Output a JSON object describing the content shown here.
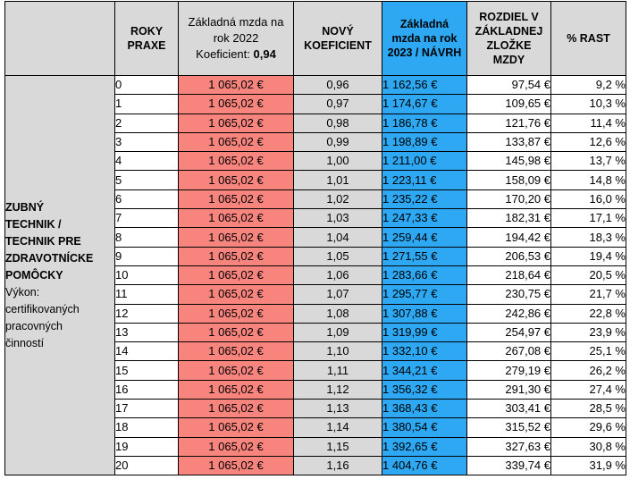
{
  "headers": {
    "category": "",
    "years": "ROKY\nPRAXE",
    "base_salary_line1": "Základná mzda na rok 2022",
    "base_salary_coef_label": "Koeficient:",
    "base_salary_coef_value": "0,94",
    "new_coef": "NOVÝ\nKOEFICIENT",
    "new_salary": "Základná mzda na rok 2023  /  NÁVRH",
    "difference": "ROZDIEL V ZÁKLADNEJ ZLOŽKE MZDY",
    "growth": "% RAST"
  },
  "category": {
    "title": "ZUBNÝ\nTECHNIK /\nTECHNIK PRE\nZDRAVOTNÍCKE\nPOMÔCKY",
    "description": "Výkon:\ncertifikovaných\npracovných\nčinností"
  },
  "rows": [
    {
      "years": "0",
      "base_salary": "1 065,02 €",
      "coef": "0,96",
      "new_salary": "1 162,56 €",
      "difference": "97,54 €",
      "growth": "9,2 %"
    },
    {
      "years": "1",
      "base_salary": "1 065,02 €",
      "coef": "0,97",
      "new_salary": "1 174,67 €",
      "difference": "109,65 €",
      "growth": "10,3 %"
    },
    {
      "years": "2",
      "base_salary": "1 065,02 €",
      "coef": "0,98",
      "new_salary": "1 186,78 €",
      "difference": "121,76 €",
      "growth": "11,4 %"
    },
    {
      "years": "3",
      "base_salary": "1 065,02 €",
      "coef": "0,99",
      "new_salary": "1 198,89 €",
      "difference": "133,87 €",
      "growth": "12,6 %"
    },
    {
      "years": "4",
      "base_salary": "1 065,02 €",
      "coef": "1,00",
      "new_salary": "1 211,00 €",
      "difference": "145,98 €",
      "growth": "13,7 %"
    },
    {
      "years": "5",
      "base_salary": "1 065,02 €",
      "coef": "1,01",
      "new_salary": "1 223,11 €",
      "difference": "158,09 €",
      "growth": "14,8 %"
    },
    {
      "years": "6",
      "base_salary": "1 065,02 €",
      "coef": "1,02",
      "new_salary": "1 235,22 €",
      "difference": "170,20 €",
      "growth": "16,0 %"
    },
    {
      "years": "7",
      "base_salary": "1 065,02 €",
      "coef": "1,03",
      "new_salary": "1 247,33 €",
      "difference": "182,31 €",
      "growth": "17,1 %"
    },
    {
      "years": "8",
      "base_salary": "1 065,02 €",
      "coef": "1,04",
      "new_salary": "1 259,44 €",
      "difference": "194,42 €",
      "growth": "18,3 %"
    },
    {
      "years": "9",
      "base_salary": "1 065,02 €",
      "coef": "1,05",
      "new_salary": "1 271,55 €",
      "difference": "206,53 €",
      "growth": "19,4 %"
    },
    {
      "years": "10",
      "base_salary": "1 065,02 €",
      "coef": "1,06",
      "new_salary": "1 283,66 €",
      "difference": "218,64 €",
      "growth": "20,5 %"
    },
    {
      "years": "11",
      "base_salary": "1 065,02 €",
      "coef": "1,07",
      "new_salary": "1 295,77 €",
      "difference": "230,75 €",
      "growth": "21,7 %"
    },
    {
      "years": "12",
      "base_salary": "1 065,02 €",
      "coef": "1,08",
      "new_salary": "1 307,88 €",
      "difference": "242,86 €",
      "growth": "22,8 %"
    },
    {
      "years": "13",
      "base_salary": "1 065,02 €",
      "coef": "1,09",
      "new_salary": "1 319,99 €",
      "difference": "254,97 €",
      "growth": "23,9 %"
    },
    {
      "years": "14",
      "base_salary": "1 065,02 €",
      "coef": "1,10",
      "new_salary": "1 332,10 €",
      "difference": "267,08 €",
      "growth": "25,1 %"
    },
    {
      "years": "15",
      "base_salary": "1 065,02 €",
      "coef": "1,11",
      "new_salary": "1 344,21 €",
      "difference": "279,19 €",
      "growth": "26,2 %"
    },
    {
      "years": "16",
      "base_salary": "1 065,02 €",
      "coef": "1,12",
      "new_salary": "1 356,32 €",
      "difference": "291,30 €",
      "growth": "27,4 %"
    },
    {
      "years": "17",
      "base_salary": "1 065,02 €",
      "coef": "1,13",
      "new_salary": "1 368,43 €",
      "difference": "303,41 €",
      "growth": "28,5 %"
    },
    {
      "years": "18",
      "base_salary": "1 065,02 €",
      "coef": "1,14",
      "new_salary": "1 380,54 €",
      "difference": "315,52 €",
      "growth": "29,6 %"
    },
    {
      "years": "19",
      "base_salary": "1 065,02 €",
      "coef": "1,15",
      "new_salary": "1 392,65 €",
      "difference": "327,63 €",
      "growth": "30,8 %"
    },
    {
      "years": "20",
      "base_salary": "1 065,02 €",
      "coef": "1,16",
      "new_salary": "1 404,76 €",
      "difference": "339,74 €",
      "growth": "31,9 %"
    }
  ],
  "colors": {
    "header_gray": "#d9d9d9",
    "salary_red": "#f8857d",
    "new_salary_blue": "#2ea8f3"
  }
}
